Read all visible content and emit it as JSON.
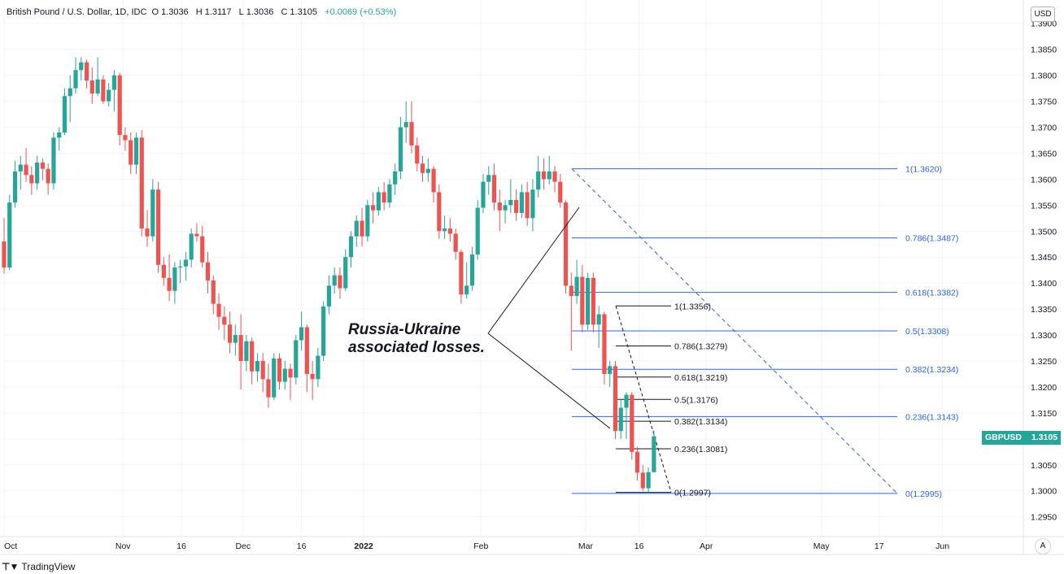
{
  "header": {
    "symbol": "British Pound / U.S. Dollar, 1D, IDC",
    "open_label": "O",
    "open": "1.3036",
    "high_label": "H",
    "high": "1.3117",
    "low_label": "L",
    "low": "1.3036",
    "close_label": "C",
    "close": "1.3105",
    "change": "+0.0069 (+0.53%)"
  },
  "currency_button": "USD",
  "auto_button": "A",
  "annotation": {
    "line1": "Russia-Ukraine",
    "line2": "associated losses."
  },
  "ticker": {
    "symbol": "GBPUSD",
    "price": "1.3105"
  },
  "brand": "TradingView",
  "colors": {
    "up": "#26a69a",
    "down": "#ef5350",
    "fib_long": "#2962ff",
    "fib_short": "#131722",
    "grid": "#f0f3fa"
  },
  "chart_data": {
    "type": "candlestick",
    "title": "British Pound / U.S. Dollar, 1D, IDC",
    "ylim": [
      1.2915,
      1.3945
    ],
    "y_ticks": [
      "1.2950",
      "1.3000",
      "1.3050",
      "1.3100",
      "1.3150",
      "1.3200",
      "1.3250",
      "1.3300",
      "1.3350",
      "1.3400",
      "1.3450",
      "1.3500",
      "1.3550",
      "1.3600",
      "1.3650",
      "1.3700",
      "1.3750",
      "1.3800",
      "1.3850",
      "1.3900"
    ],
    "x_ticks": [
      {
        "label": "Oct",
        "x": 0,
        "bold": false
      },
      {
        "label": "Nov",
        "x": 21.6,
        "bold": false
      },
      {
        "label": "16",
        "x": 32.2,
        "bold": false
      },
      {
        "label": "Dec",
        "x": 43.4,
        "bold": false
      },
      {
        "label": "16",
        "x": 54,
        "bold": false
      },
      {
        "label": "2022",
        "x": 65.3,
        "bold": true
      },
      {
        "label": "Feb",
        "x": 86.6,
        "bold": false
      },
      {
        "label": "Mar",
        "x": 105.6,
        "bold": false
      },
      {
        "label": "16",
        "x": 115.3,
        "bold": false
      },
      {
        "label": "Apr",
        "x": 127.5,
        "bold": false
      },
      {
        "label": "May",
        "x": 148.4,
        "bold": false
      },
      {
        "label": "17",
        "x": 158.9,
        "bold": false
      },
      {
        "label": "Jun",
        "x": 170.4,
        "bold": false
      }
    ],
    "candles": [
      [
        1.348,
        1.3525,
        1.3418,
        1.343
      ],
      [
        1.343,
        1.357,
        1.3425,
        1.3555
      ],
      [
        1.3555,
        1.3635,
        1.3545,
        1.3615
      ],
      [
        1.3615,
        1.3645,
        1.358,
        1.3628
      ],
      [
        1.3628,
        1.366,
        1.3595,
        1.3608
      ],
      [
        1.3608,
        1.3625,
        1.357,
        1.3592
      ],
      [
        1.3592,
        1.3645,
        1.358,
        1.3632
      ],
      [
        1.3632,
        1.364,
        1.3598,
        1.362
      ],
      [
        1.362,
        1.363,
        1.357,
        1.3592
      ],
      [
        1.3592,
        1.369,
        1.358,
        1.368
      ],
      [
        1.368,
        1.37,
        1.3655,
        1.369
      ],
      [
        1.369,
        1.3775,
        1.3685,
        1.376
      ],
      [
        1.376,
        1.38,
        1.371,
        1.3775
      ],
      [
        1.3775,
        1.3835,
        1.3765,
        1.381
      ],
      [
        1.381,
        1.3835,
        1.379,
        1.3825
      ],
      [
        1.3825,
        1.383,
        1.3775,
        1.379
      ],
      [
        1.379,
        1.3815,
        1.3745,
        1.3765
      ],
      [
        1.3765,
        1.3835,
        1.376,
        1.3792
      ],
      [
        1.3792,
        1.38,
        1.3745,
        1.375
      ],
      [
        1.375,
        1.3785,
        1.374,
        1.3772
      ],
      [
        1.3772,
        1.381,
        1.373,
        1.38
      ],
      [
        1.38,
        1.3805,
        1.3665,
        1.3685
      ],
      [
        1.3685,
        1.37,
        1.3655,
        1.3675
      ],
      [
        1.3675,
        1.369,
        1.361,
        1.3628
      ],
      [
        1.3628,
        1.369,
        1.361,
        1.368
      ],
      [
        1.368,
        1.3695,
        1.349,
        1.3505
      ],
      [
        1.3505,
        1.354,
        1.347,
        1.349
      ],
      [
        1.349,
        1.36,
        1.348,
        1.358
      ],
      [
        1.358,
        1.3595,
        1.342,
        1.3435
      ],
      [
        1.3435,
        1.345,
        1.3395,
        1.341
      ],
      [
        1.341,
        1.3455,
        1.3365,
        1.3385
      ],
      [
        1.3385,
        1.344,
        1.336,
        1.343
      ],
      [
        1.343,
        1.3445,
        1.34,
        1.3432
      ],
      [
        1.3432,
        1.346,
        1.3405,
        1.3445
      ],
      [
        1.3445,
        1.3505,
        1.343,
        1.3495
      ],
      [
        1.3495,
        1.3515,
        1.348,
        1.349
      ],
      [
        1.349,
        1.351,
        1.343,
        1.344
      ],
      [
        1.344,
        1.346,
        1.338,
        1.3405
      ],
      [
        1.3405,
        1.3415,
        1.334,
        1.336
      ],
      [
        1.336,
        1.338,
        1.331,
        1.3335
      ],
      [
        1.3335,
        1.3355,
        1.329,
        1.332
      ],
      [
        1.332,
        1.3345,
        1.3265,
        1.3285
      ],
      [
        1.3285,
        1.332,
        1.326,
        1.33
      ],
      [
        1.33,
        1.334,
        1.3195,
        1.325
      ],
      [
        1.325,
        1.33,
        1.323,
        1.3288
      ],
      [
        1.3288,
        1.3295,
        1.3205,
        1.323
      ],
      [
        1.323,
        1.3265,
        1.321,
        1.325
      ],
      [
        1.325,
        1.3265,
        1.319,
        1.3215
      ],
      [
        1.3215,
        1.3245,
        1.316,
        1.318
      ],
      [
        1.318,
        1.3265,
        1.3175,
        1.3255
      ],
      [
        1.3255,
        1.3265,
        1.3195,
        1.321
      ],
      [
        1.321,
        1.325,
        1.3195,
        1.3235
      ],
      [
        1.3235,
        1.3245,
        1.3175,
        1.3218
      ],
      [
        1.3218,
        1.33,
        1.3205,
        1.329
      ],
      [
        1.329,
        1.3345,
        1.327,
        1.3315
      ],
      [
        1.3315,
        1.332,
        1.319,
        1.3225
      ],
      [
        1.3225,
        1.325,
        1.3175,
        1.3215
      ],
      [
        1.3215,
        1.3275,
        1.32,
        1.326
      ],
      [
        1.326,
        1.3365,
        1.325,
        1.3355
      ],
      [
        1.3355,
        1.3415,
        1.334,
        1.3395
      ],
      [
        1.3395,
        1.343,
        1.338,
        1.3415
      ],
      [
        1.3415,
        1.343,
        1.337,
        1.339
      ],
      [
        1.339,
        1.3465,
        1.3385,
        1.345
      ],
      [
        1.345,
        1.35,
        1.343,
        1.349
      ],
      [
        1.349,
        1.353,
        1.347,
        1.352
      ],
      [
        1.352,
        1.3545,
        1.347,
        1.349
      ],
      [
        1.349,
        1.356,
        1.348,
        1.355
      ],
      [
        1.355,
        1.3575,
        1.3515,
        1.354
      ],
      [
        1.354,
        1.3585,
        1.353,
        1.3575
      ],
      [
        1.3575,
        1.3595,
        1.354,
        1.3555
      ],
      [
        1.3555,
        1.36,
        1.3545,
        1.359
      ],
      [
        1.359,
        1.363,
        1.357,
        1.3615
      ],
      [
        1.3615,
        1.372,
        1.36,
        1.37
      ],
      [
        1.37,
        1.375,
        1.367,
        1.371
      ],
      [
        1.371,
        1.375,
        1.365,
        1.3665
      ],
      [
        1.3665,
        1.368,
        1.3615,
        1.363
      ],
      [
        1.363,
        1.3645,
        1.3595,
        1.3612
      ],
      [
        1.3612,
        1.364,
        1.3595,
        1.362
      ],
      [
        1.362,
        1.3625,
        1.3555,
        1.3575
      ],
      [
        1.3575,
        1.359,
        1.3485,
        1.35
      ],
      [
        1.35,
        1.353,
        1.3485,
        1.3505
      ],
      [
        1.3505,
        1.3525,
        1.348,
        1.3495
      ],
      [
        1.3495,
        1.3505,
        1.3445,
        1.346
      ],
      [
        1.346,
        1.3465,
        1.336,
        1.3378
      ],
      [
        1.3378,
        1.344,
        1.337,
        1.3395
      ],
      [
        1.3395,
        1.347,
        1.3385,
        1.3455
      ],
      [
        1.3455,
        1.356,
        1.3445,
        1.3545
      ],
      [
        1.3545,
        1.361,
        1.3535,
        1.3595
      ],
      [
        1.3595,
        1.3625,
        1.357,
        1.3608
      ],
      [
        1.3608,
        1.363,
        1.354,
        1.3555
      ],
      [
        1.3555,
        1.358,
        1.35,
        1.354
      ],
      [
        1.354,
        1.356,
        1.3515,
        1.355
      ],
      [
        1.355,
        1.36,
        1.3535,
        1.356
      ],
      [
        1.356,
        1.358,
        1.352,
        1.3535
      ],
      [
        1.3535,
        1.359,
        1.3525,
        1.3575
      ],
      [
        1.3575,
        1.3595,
        1.351,
        1.3525
      ],
      [
        1.3525,
        1.36,
        1.35,
        1.358
      ],
      [
        1.358,
        1.3645,
        1.3565,
        1.3615
      ],
      [
        1.3615,
        1.364,
        1.358,
        1.36
      ],
      [
        1.36,
        1.3645,
        1.359,
        1.3615
      ],
      [
        1.3615,
        1.3625,
        1.3575,
        1.3595
      ],
      [
        1.3595,
        1.361,
        1.3545,
        1.3555
      ],
      [
        1.3555,
        1.356,
        1.338,
        1.3395
      ],
      [
        1.3395,
        1.342,
        1.327,
        1.3375
      ],
      [
        1.3375,
        1.3445,
        1.336,
        1.3412
      ],
      [
        1.3412,
        1.3435,
        1.3305,
        1.332
      ],
      [
        1.332,
        1.342,
        1.331,
        1.341
      ],
      [
        1.341,
        1.342,
        1.3305,
        1.332
      ],
      [
        1.332,
        1.3356,
        1.3275,
        1.334
      ],
      [
        1.334,
        1.3345,
        1.3205,
        1.3225
      ],
      [
        1.3225,
        1.325,
        1.32,
        1.324
      ],
      [
        1.324,
        1.325,
        1.31,
        1.3115
      ],
      [
        1.3115,
        1.3175,
        1.31,
        1.316
      ],
      [
        1.316,
        1.319,
        1.31,
        1.3185
      ],
      [
        1.3185,
        1.319,
        1.306,
        1.3075
      ],
      [
        1.3075,
        1.3085,
        1.302,
        1.3035
      ],
      [
        1.3035,
        1.305,
        1.3,
        1.3005
      ],
      [
        1.3005,
        1.3045,
        1.2997,
        1.3036
      ],
      [
        1.3036,
        1.3117,
        1.3036,
        1.3105
      ]
    ],
    "fib_long": {
      "levels": [
        {
          "label": "1(1.3620)",
          "value": 1.362
        },
        {
          "label": "0.786(1.3487)",
          "value": 1.3487
        },
        {
          "label": "0.618(1.3382)",
          "value": 1.3382
        },
        {
          "label": "0.5(1.3308)",
          "value": 1.3308
        },
        {
          "label": "0.382(1.3234)",
          "value": 1.3234
        },
        {
          "label": "0.236(1.3143)",
          "value": 1.3143
        },
        {
          "label": "0(1.2995)",
          "value": 1.2995
        }
      ]
    },
    "fib_short": {
      "levels": [
        {
          "label": "1(1.3356)",
          "value": 1.3356
        },
        {
          "label": "0.786(1.3279)",
          "value": 1.3279
        },
        {
          "label": "0.618(1.3219)",
          "value": 1.3219
        },
        {
          "label": "0.5(1.3176)",
          "value": 1.3176
        },
        {
          "label": "0.382(1.3134)",
          "value": 1.3134
        },
        {
          "label": "0.236(1.3081)",
          "value": 1.3081
        },
        {
          "label": "0(1.2997)",
          "value": 1.2997
        }
      ]
    }
  }
}
